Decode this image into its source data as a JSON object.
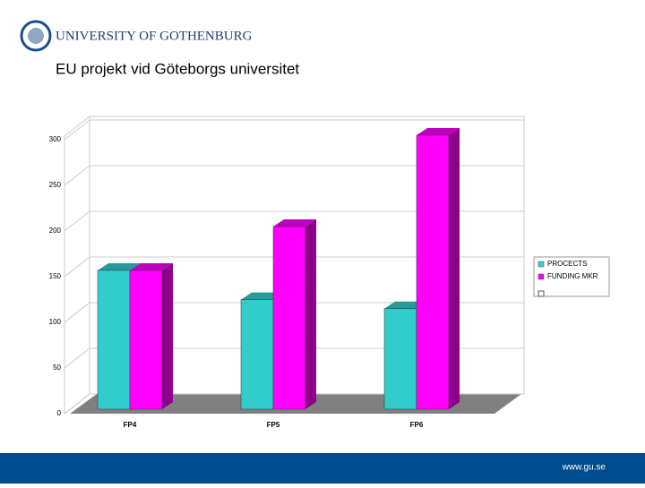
{
  "header": {
    "logo_text": "UNIVERSITY OF GOTHENBURG"
  },
  "footer": {
    "url": "www.gu.se"
  },
  "chart_data": {
    "type": "bar",
    "title": "EU projekt vid Göteborgs universitet",
    "categories": [
      "FP4",
      "FP5",
      "FP6"
    ],
    "series": [
      {
        "name": "PROCECTS",
        "color": "#33cccc",
        "values": [
          152,
          120,
          110
        ]
      },
      {
        "name": "FUNDING MKR",
        "color": "#ff00ff",
        "values": [
          152,
          200,
          300
        ]
      }
    ],
    "ylim": [
      0,
      300
    ],
    "yticks": [
      0,
      50,
      100,
      150,
      200,
      250,
      300
    ],
    "grid": true,
    "legend": "right"
  }
}
